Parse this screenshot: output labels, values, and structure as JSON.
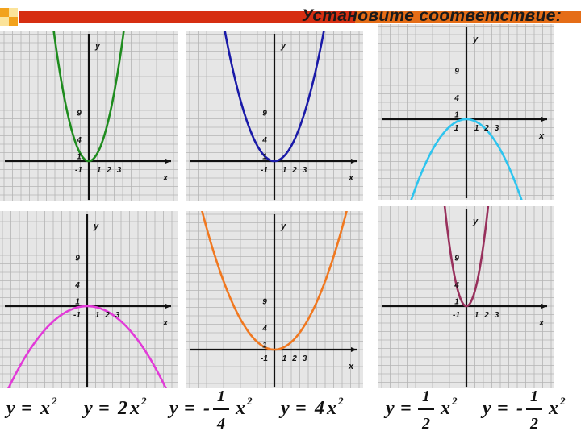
{
  "title": "Установите соответствие:",
  "colors": {
    "header_red": "#d62e12",
    "header_orange": "#f2a21c",
    "header_yellow": "#f7d13a",
    "grid_bg": "#e6e6e6",
    "grid_line": "#b4b4b4"
  },
  "graphs": [
    {
      "id": "top-left",
      "color": "#1e8c1e",
      "coef": 2,
      "labels": {
        "x": "x",
        "y": "y",
        "y_ticks": [
          "9",
          "4",
          "1"
        ],
        "x_ticks": [
          "-1",
          "1",
          "2",
          "3"
        ]
      }
    },
    {
      "id": "top-middle",
      "color": "#1a1aa8",
      "coef": 1,
      "labels": {
        "x": "x",
        "y": "y",
        "y_ticks": [
          "9",
          "4",
          "1"
        ],
        "x_ticks": [
          "-1",
          "1",
          "2",
          "3"
        ]
      }
    },
    {
      "id": "top-right",
      "color": "#2ec4ee",
      "coef": -0.5,
      "labels": {
        "x": "x",
        "y": "y",
        "y_ticks": [
          "9",
          "4",
          "1"
        ],
        "x_ticks": [
          "1",
          "1",
          "2",
          "3"
        ]
      }
    },
    {
      "id": "bottom-left",
      "color": "#e23ad8",
      "coef": -0.25,
      "labels": {
        "x": "x",
        "y": "y",
        "y_ticks": [
          "9",
          "4",
          "1"
        ],
        "x_ticks": [
          "-1",
          "1",
          "2",
          "3"
        ]
      }
    },
    {
      "id": "bottom-middle",
      "color": "#f07820",
      "coef": 0.5,
      "labels": {
        "x": "x",
        "y": "y",
        "y_ticks": [
          "9",
          "4",
          "1"
        ],
        "x_ticks": [
          "-1",
          "1",
          "2",
          "3"
        ]
      }
    },
    {
      "id": "bottom-right",
      "color": "#98305c",
      "coef": 4,
      "labels": {
        "x": "x",
        "y": "y",
        "y_ticks": [
          "9",
          "4",
          "1"
        ],
        "x_ticks": [
          "-1",
          "1",
          "2",
          "3"
        ]
      }
    }
  ],
  "formulas": [
    {
      "lhs": "y",
      "eq": "=",
      "sign": "",
      "num": "",
      "den": "",
      "coef": "",
      "var": "x",
      "exp": "2"
    },
    {
      "lhs": "y",
      "eq": "=",
      "sign": "",
      "num": "",
      "den": "",
      "coef": "2",
      "var": "x",
      "exp": "2"
    },
    {
      "lhs": "y",
      "eq": "=",
      "sign": "-",
      "num": "1",
      "den": "4",
      "coef": "",
      "var": "x",
      "exp": "2"
    },
    {
      "lhs": "y",
      "eq": "=",
      "sign": "",
      "num": "",
      "den": "",
      "coef": "4",
      "var": "x",
      "exp": "2"
    },
    {
      "lhs": "y",
      "eq": "=",
      "sign": "",
      "num": "1",
      "den": "2",
      "coef": "",
      "var": "x",
      "exp": "2"
    },
    {
      "lhs": "y",
      "eq": "=",
      "sign": "-",
      "num": "1",
      "den": "2",
      "coef": "",
      "var": "x",
      "exp": "2"
    }
  ]
}
